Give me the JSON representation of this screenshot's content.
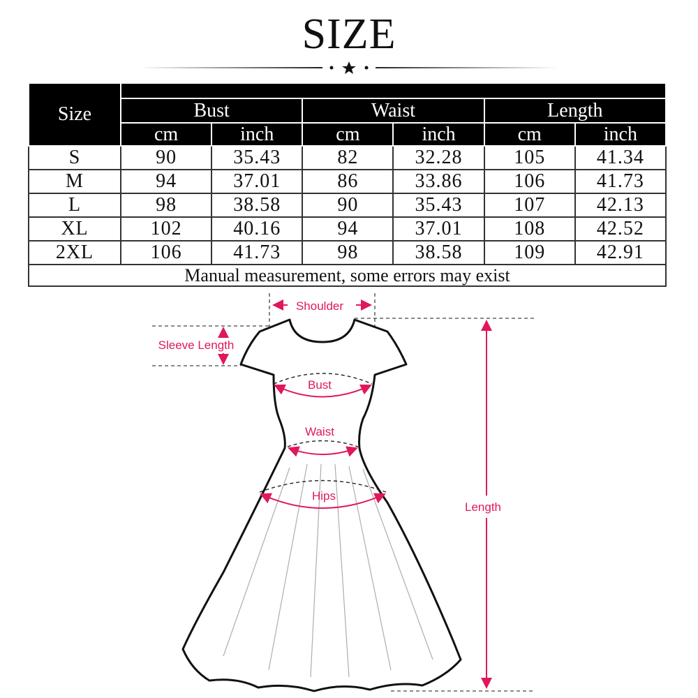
{
  "title": "SIZE",
  "table": {
    "size_header": "Size",
    "groups": [
      "Bust",
      "Waist",
      "Length"
    ],
    "units": [
      "cm",
      "inch",
      "cm",
      "inch",
      "cm",
      "inch"
    ],
    "rows": [
      {
        "size": "S",
        "values": [
          "90",
          "35.43",
          "82",
          "32.28",
          "105",
          "41.34"
        ]
      },
      {
        "size": "M",
        "values": [
          "94",
          "37.01",
          "86",
          "33.86",
          "106",
          "41.73"
        ]
      },
      {
        "size": "L",
        "values": [
          "98",
          "38.58",
          "90",
          "35.43",
          "107",
          "42.13"
        ]
      },
      {
        "size": "XL",
        "values": [
          "102",
          "40.16",
          "94",
          "37.01",
          "108",
          "42.52"
        ]
      },
      {
        "size": "2XL",
        "values": [
          "106",
          "41.73",
          "98",
          "38.58",
          "109",
          "42.91"
        ]
      }
    ],
    "note": "Manual measurement, some errors may exist"
  },
  "diagram": {
    "labels": {
      "shoulder": "Shoulder",
      "sleeve_length": "Sleeve Length",
      "bust": "Bust",
      "waist": "Waist",
      "hips": "Hips",
      "length": "Length"
    },
    "accent_color": "#e0185a"
  }
}
